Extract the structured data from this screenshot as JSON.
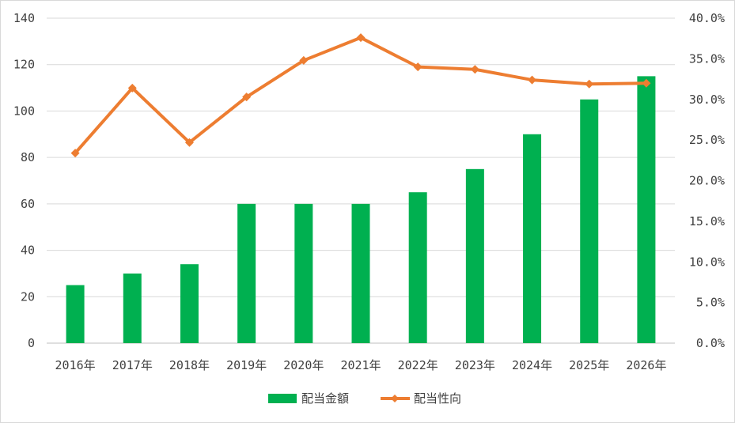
{
  "chart_data": {
    "type": "bar",
    "categories": [
      "2016年",
      "2017年",
      "2018年",
      "2019年",
      "2020年",
      "2021年",
      "2022年",
      "2023年",
      "2024年",
      "2025年",
      "2026年"
    ],
    "series": [
      {
        "name": "配当金額",
        "kind": "bar",
        "axis": "left",
        "color": "#00b050",
        "values": [
          25,
          30,
          34,
          60,
          60,
          60,
          65,
          75,
          90,
          105,
          115
        ]
      },
      {
        "name": "配当性向",
        "kind": "line",
        "axis": "right",
        "color": "#ed7d31",
        "values": [
          23.4,
          31.4,
          24.7,
          30.3,
          34.8,
          37.6,
          34.0,
          33.7,
          32.4,
          31.9,
          32.0
        ]
      }
    ],
    "y_left": {
      "lim": [
        0,
        140
      ],
      "ticks": [
        "0",
        "20",
        "40",
        "60",
        "80",
        "100",
        "120",
        "140"
      ]
    },
    "y_right": {
      "lim": [
        0,
        40
      ],
      "ticks": [
        "0.0%",
        "5.0%",
        "10.0%",
        "15.0%",
        "20.0%",
        "25.0%",
        "30.0%",
        "35.0%",
        "40.0%"
      ]
    },
    "grid": true,
    "legend": "bottom"
  }
}
